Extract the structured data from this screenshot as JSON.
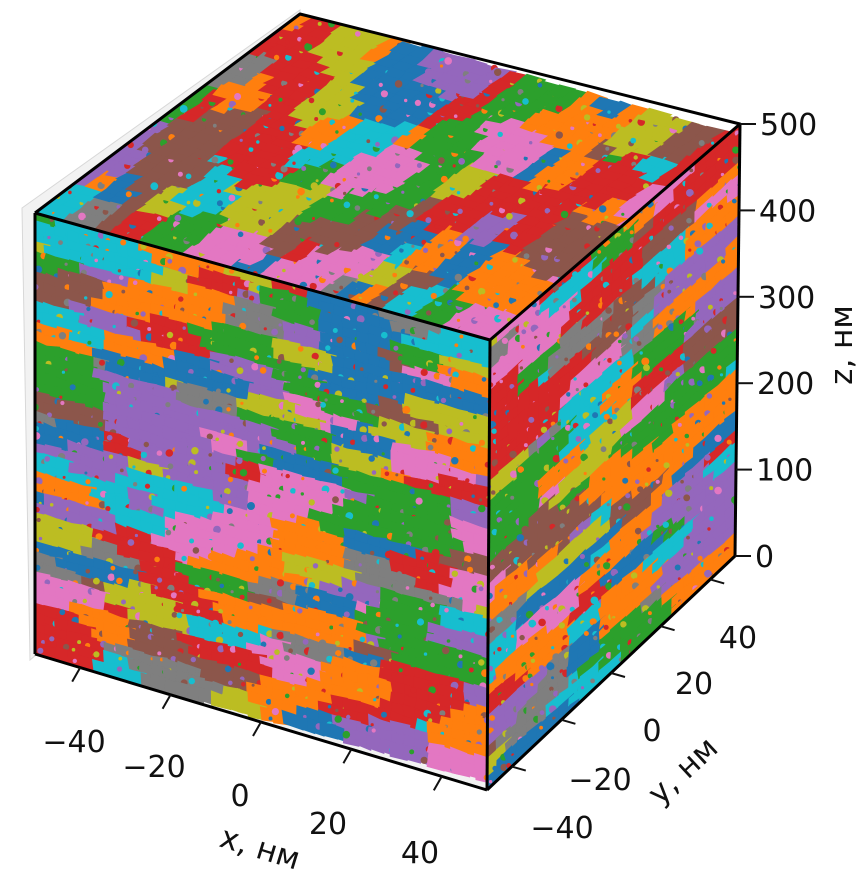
{
  "chart_data": {
    "type": "scatter",
    "subtype": "3d-voxel-clusters",
    "title": "",
    "xlabel": "x, нм",
    "ylabel": "y, нм",
    "zlabel": "z, нм",
    "xlim": [
      -50,
      50
    ],
    "ylim": [
      -50,
      50
    ],
    "zlim": [
      0,
      500
    ],
    "x_ticks": [
      "−40",
      "−20",
      "0",
      "20",
      "40"
    ],
    "y_ticks": [
      "−40",
      "−20",
      "0",
      "20",
      "40"
    ],
    "z_ticks": [
      "0",
      "100",
      "200",
      "300",
      "400",
      "500"
    ],
    "grid": false,
    "legend": "none",
    "description_values": {
      "cluster_colors": [
        "#1f77b4",
        "#ff7f0e",
        "#2ca02c",
        "#d62728",
        "#9467bd",
        "#8c564b",
        "#e377c2",
        "#7f7f7f",
        "#bcbd22",
        "#17becf"
      ]
    }
  },
  "colors": {
    "edge": "#000000",
    "pane": "#f2f2f2",
    "pane_line": "#d8d8d8",
    "tick": "#111111"
  }
}
